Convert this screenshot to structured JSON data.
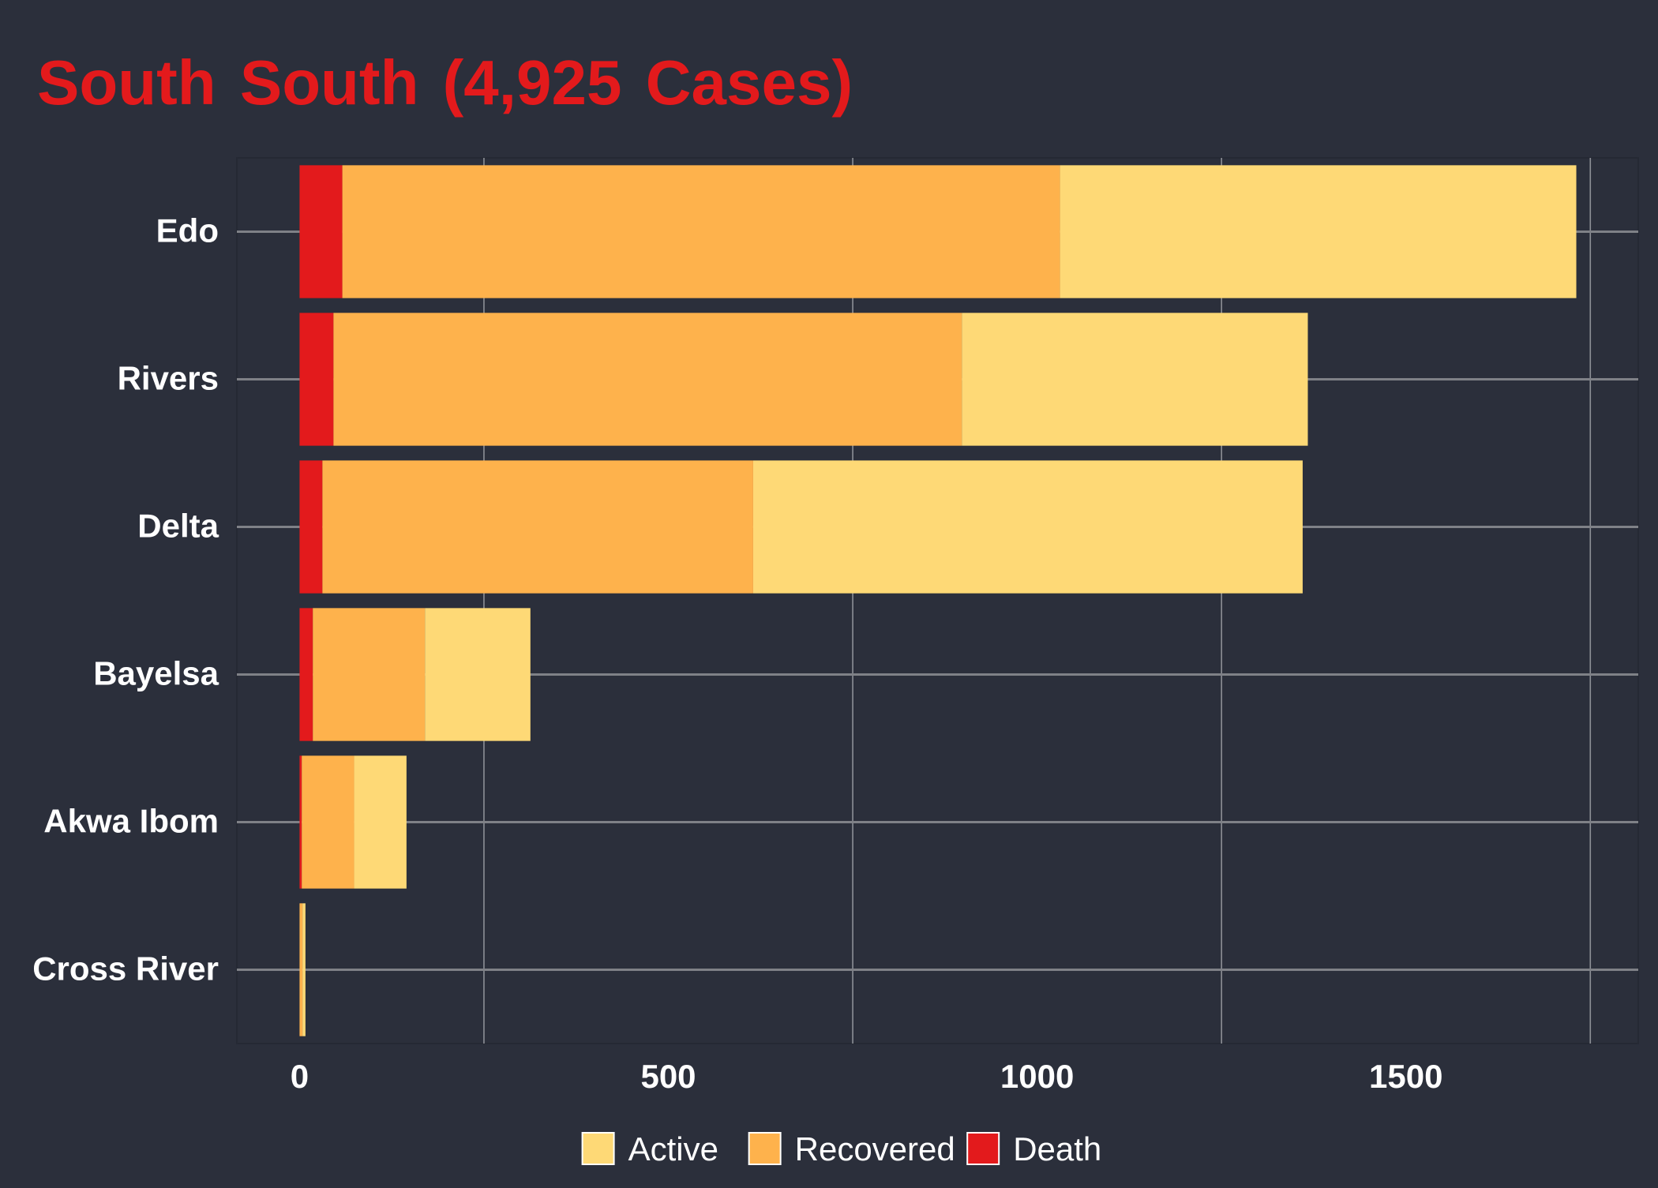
{
  "chart_data": {
    "type": "bar",
    "orientation": "horizontal",
    "stacked": true,
    "title": "South South (4,925 Cases)",
    "xlabel": "",
    "ylabel": "",
    "categories": [
      "Edo",
      "Rivers",
      "Delta",
      "Bayelsa",
      "Akwa Ibom",
      "Cross River"
    ],
    "series": [
      {
        "name": "Death",
        "color": "#e31a1c",
        "values": [
          58,
          46,
          31,
          18,
          3,
          0
        ]
      },
      {
        "name": "Recovered",
        "color": "#feb24c",
        "values": [
          973,
          852,
          584,
          152,
          71,
          4
        ]
      },
      {
        "name": "Active",
        "color": "#fed976",
        "values": [
          700,
          469,
          745,
          143,
          71,
          4
        ]
      }
    ],
    "legend_order": [
      "Active",
      "Recovered",
      "Death"
    ],
    "xlim": [
      -85,
      1815
    ],
    "xticks": [
      0,
      500,
      1000,
      1500
    ],
    "xtick_labels": [
      "0",
      "500",
      "1000",
      "1500"
    ],
    "minor_gridlines": [
      250,
      750,
      1250,
      1750
    ],
    "grid": true,
    "legend_position": "bottom",
    "colors": {
      "background": "#2b2f3b",
      "panel_border": "#252934",
      "grid_major": "#7f8187",
      "grid_minor": "#8d9096",
      "title": "#e31a1c",
      "text": "#ffffff"
    }
  }
}
